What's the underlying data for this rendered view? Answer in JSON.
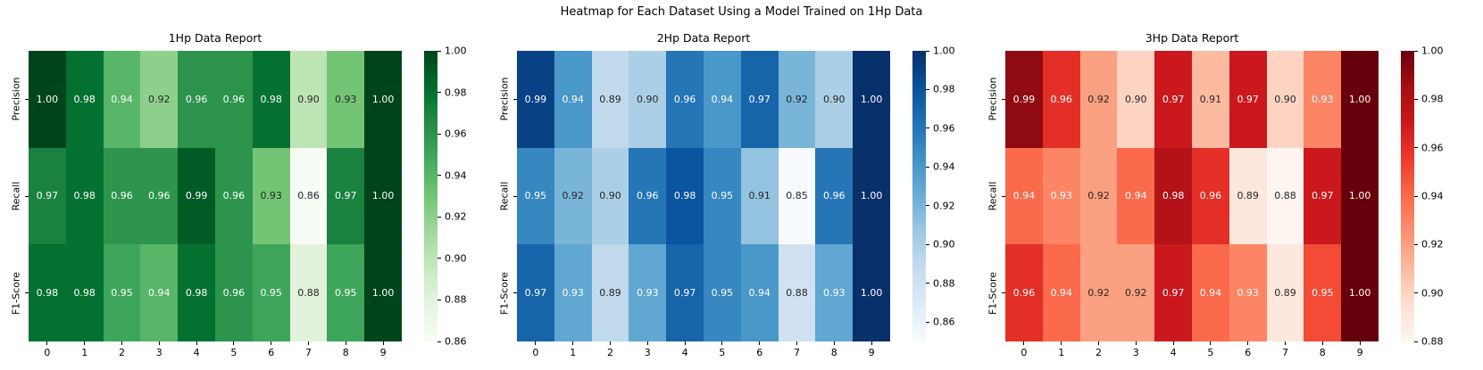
{
  "figure": {
    "title": "Heatmap for Each Dataset Using a Model Trained on 1Hp Data",
    "background": "#ffffff",
    "annotation_dark_color": "#262626",
    "annotation_light_color": "#ffffff"
  },
  "chart_data": [
    {
      "type": "heatmap",
      "title": "1Hp Data Report",
      "colormap": "Greens",
      "colormap_colors": [
        "#f7fcf5",
        "#e5f5e0",
        "#c7e9c0",
        "#a1d99b",
        "#74c476",
        "#41ab5d",
        "#238b45",
        "#006d2c",
        "#00441b"
      ],
      "rows": [
        "Precision",
        "Recall",
        "F1-Score"
      ],
      "columns": [
        "0",
        "1",
        "2",
        "3",
        "4",
        "5",
        "6",
        "7",
        "8",
        "9"
      ],
      "values": [
        [
          1.0,
          0.98,
          0.94,
          0.92,
          0.96,
          0.96,
          0.98,
          0.9,
          0.93,
          1.0
        ],
        [
          0.97,
          0.98,
          0.96,
          0.96,
          0.99,
          0.96,
          0.93,
          0.86,
          0.97,
          1.0
        ],
        [
          0.98,
          0.98,
          0.95,
          0.94,
          0.98,
          0.96,
          0.95,
          0.88,
          0.95,
          1.0
        ]
      ],
      "vmin": 0.86,
      "vmax": 1.0,
      "colorbar_ticks": [
        "1.00",
        "0.98",
        "0.96",
        "0.94",
        "0.92",
        "0.90",
        "0.88",
        "0.86"
      ],
      "legend_position": "right-colorbar",
      "grid": false
    },
    {
      "type": "heatmap",
      "title": "2Hp Data Report",
      "colormap": "Blues",
      "colormap_colors": [
        "#f7fbff",
        "#deebf7",
        "#c6dbef",
        "#9ecae1",
        "#6baed6",
        "#4292c6",
        "#2171b5",
        "#08519c",
        "#08306b"
      ],
      "rows": [
        "Precision",
        "Recall",
        "F1-Score"
      ],
      "columns": [
        "0",
        "1",
        "2",
        "3",
        "4",
        "5",
        "6",
        "7",
        "8",
        "9"
      ],
      "values": [
        [
          0.99,
          0.94,
          0.89,
          0.9,
          0.96,
          0.94,
          0.97,
          0.92,
          0.9,
          1.0
        ],
        [
          0.95,
          0.92,
          0.9,
          0.96,
          0.98,
          0.95,
          0.91,
          0.85,
          0.96,
          1.0
        ],
        [
          0.97,
          0.93,
          0.89,
          0.93,
          0.97,
          0.95,
          0.94,
          0.88,
          0.93,
          1.0
        ]
      ],
      "vmin": 0.85,
      "vmax": 1.0,
      "colorbar_ticks": [
        "1.00",
        "0.98",
        "0.96",
        "0.94",
        "0.92",
        "0.90",
        "0.88",
        "0.86"
      ],
      "legend_position": "right-colorbar",
      "grid": false
    },
    {
      "type": "heatmap",
      "title": "3Hp Data Report",
      "colormap": "Reds",
      "colormap_colors": [
        "#fff5f0",
        "#fee0d2",
        "#fcbba1",
        "#fc9272",
        "#fb6a4a",
        "#ef3b2c",
        "#cb181d",
        "#a50f15",
        "#67000d"
      ],
      "rows": [
        "Precision",
        "Recall",
        "F1-Score"
      ],
      "columns": [
        "0",
        "1",
        "2",
        "3",
        "4",
        "5",
        "6",
        "7",
        "8",
        "9"
      ],
      "values": [
        [
          0.99,
          0.96,
          0.92,
          0.9,
          0.97,
          0.91,
          0.97,
          0.9,
          0.93,
          1.0
        ],
        [
          0.94,
          0.93,
          0.92,
          0.94,
          0.98,
          0.96,
          0.89,
          0.88,
          0.97,
          1.0
        ],
        [
          0.96,
          0.94,
          0.92,
          0.92,
          0.97,
          0.94,
          0.93,
          0.89,
          0.95,
          1.0
        ]
      ],
      "vmin": 0.88,
      "vmax": 1.0,
      "colorbar_ticks": [
        "1.00",
        "0.98",
        "0.96",
        "0.94",
        "0.92",
        "0.90",
        "0.88"
      ],
      "legend_position": "right-colorbar",
      "grid": false
    }
  ]
}
